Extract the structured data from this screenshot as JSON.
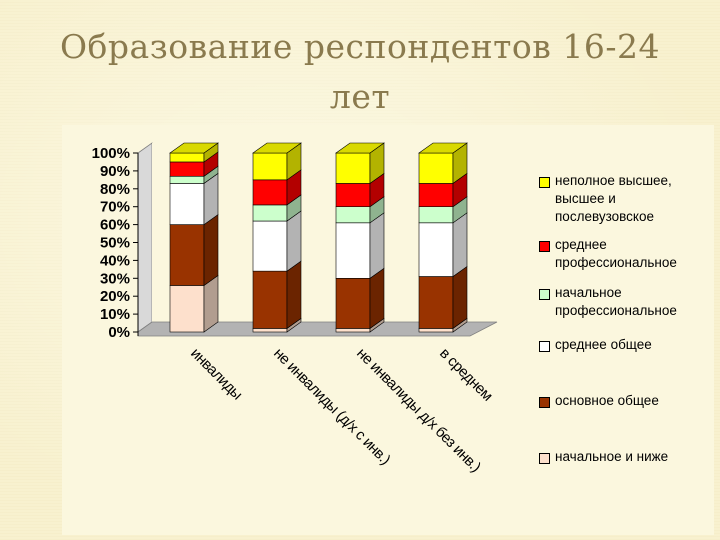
{
  "slide": {
    "title": "Образование респондентов 16-24 лет"
  },
  "chart_data": {
    "type": "bar",
    "stacked": true,
    "percent": true,
    "three_d": true,
    "categories": [
      "инвалиды",
      "не инвалиды (д/х с инв.)",
      "не инвалиды д/х без инв.)",
      "в среднем"
    ],
    "series": [
      {
        "name": "начальное и ниже",
        "color": "#fde0cc",
        "values": [
          26,
          2,
          2,
          2
        ]
      },
      {
        "name": "основное общее",
        "color": "#993300",
        "values": [
          34,
          32,
          28,
          29
        ]
      },
      {
        "name": "среднее общее",
        "color": "#ffffff",
        "values": [
          23,
          28,
          31,
          30
        ]
      },
      {
        "name": "начальное профессиональное",
        "color": "#ccffcc",
        "values": [
          4,
          9,
          9,
          9
        ]
      },
      {
        "name": "среднее профессиональное",
        "color": "#ff0000",
        "values": [
          8,
          14,
          13,
          13
        ]
      },
      {
        "name": "неполное высшее, высшее и послевузовское",
        "color": "#ffff00",
        "values": [
          5,
          15,
          17,
          17
        ]
      }
    ],
    "ylim": [
      0,
      100
    ],
    "yticks": [
      "0%",
      "10%",
      "20%",
      "30%",
      "40%",
      "50%",
      "60%",
      "70%",
      "80%",
      "90%",
      "100%"
    ],
    "legend_position": "right",
    "grid": false
  }
}
